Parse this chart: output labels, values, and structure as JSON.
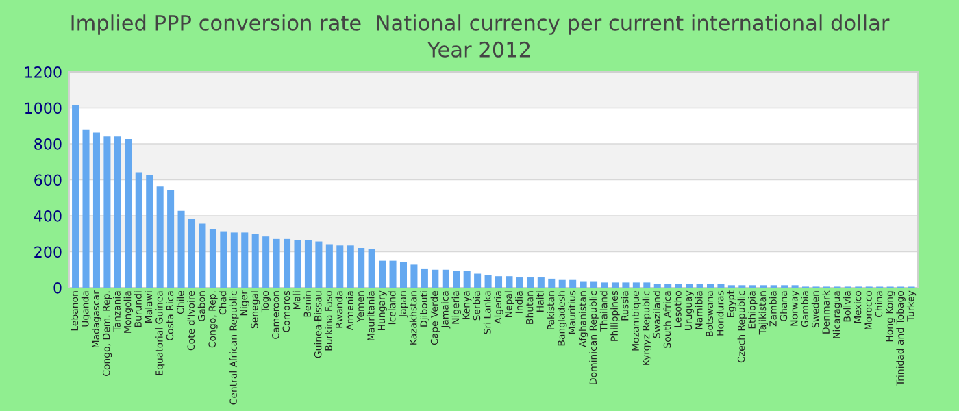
{
  "chart_data": {
    "type": "bar",
    "title": "Implied PPP conversion rate  National currency per current international dollar",
    "subtitle": "Year 2012",
    "categories": [
      "Lebanon",
      "Uganda",
      "Madagascar",
      "Congo, Dem. Rep.",
      "Tanzania",
      "Mongolia",
      "Burundi",
      "Malawi",
      "Equatorial Guinea",
      "Costa Rica",
      "Chile",
      "Cote d'Ivoire",
      "Gabon",
      "Congo, Rep.",
      "Chad",
      "Central African Republic",
      "Niger",
      "Senegal",
      "Togo",
      "Cameroon",
      "Comoros",
      "Mali",
      "Benin",
      "Guinea-Bissau",
      "Burkina Faso",
      "Rwanda",
      "Armenia",
      "Yemen",
      "Mauritania",
      "Hungary",
      "Iceland",
      "Japan",
      "Kazakhstan",
      "Djibouti",
      "Cape Verde",
      "Jamaica",
      "Nigeria",
      "Kenya",
      "Serbia",
      "Sri Lanka",
      "Algeria",
      "Nepal",
      "India",
      "Bhutan",
      "Haiti",
      "Pakistan",
      "Bangladesh",
      "Mauritius",
      "Afghanistan",
      "Dominican Republic",
      "Thailand",
      "Philippines",
      "Russia",
      "Mozambique",
      "Kyrgyz Republic",
      "Swaziland",
      "South Africa",
      "Lesotho",
      "Uruguay",
      "Namibia",
      "Botswana",
      "Honduras",
      "Egypt",
      "Czech Republic",
      "Ethiopia",
      "Tajikistan",
      "Zambia",
      "Ghana",
      "Norway",
      "Gambia",
      "Sweden",
      "Denmark",
      "Nicaragua",
      "Bolivia",
      "Mexico",
      "Morocco",
      "China",
      "Hong Kong",
      "Trinidad and Tobago",
      "Turkey"
    ],
    "values": [
      1017,
      877,
      863,
      841,
      841,
      827,
      642,
      627,
      563,
      542,
      428,
      385,
      356,
      328,
      314,
      307,
      307,
      299,
      285,
      271,
      271,
      264,
      264,
      257,
      242,
      235,
      235,
      221,
      214,
      150,
      150,
      143,
      128,
      107,
      100,
      100,
      93,
      93,
      78,
      71,
      64,
      64,
      57,
      57,
      57,
      50,
      43,
      43,
      36,
      36,
      29,
      29,
      29,
      29,
      29,
      21,
      21,
      21,
      21,
      21,
      21,
      21,
      14,
      14,
      14,
      14,
      14,
      14,
      14,
      6,
      6,
      6,
      6,
      6,
      6,
      6,
      6,
      6,
      6,
      6
    ],
    "color": "#64a8f0",
    "ylim": [
      0,
      1200
    ],
    "yticks": [
      0,
      200,
      400,
      600,
      800,
      1000,
      1200
    ],
    "grid": "y"
  }
}
